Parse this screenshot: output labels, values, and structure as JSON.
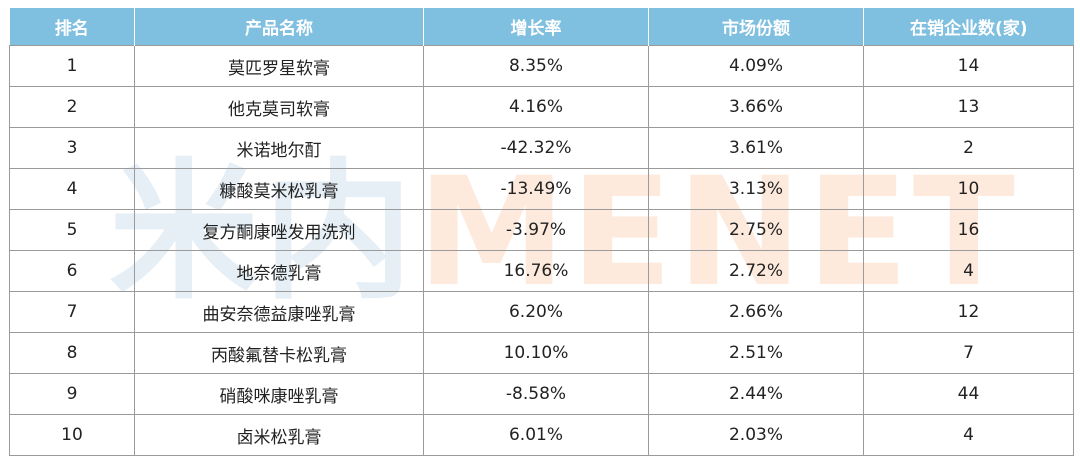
{
  "watermark": {
    "part1": "米内",
    "part2": "MENET"
  },
  "table": {
    "headers": [
      "排名",
      "产品名称",
      "增长率",
      "市场份额",
      "在销企业数(家)"
    ],
    "rows": [
      {
        "rank": "1",
        "name": "莫匹罗星软膏",
        "growth": "8.35%",
        "share": "4.09%",
        "companies": "14"
      },
      {
        "rank": "2",
        "name": "他克莫司软膏",
        "growth": "4.16%",
        "share": "3.66%",
        "companies": "13"
      },
      {
        "rank": "3",
        "name": "米诺地尔酊",
        "growth": "-42.32%",
        "share": "3.61%",
        "companies": "2"
      },
      {
        "rank": "4",
        "name": "糠酸莫米松乳膏",
        "growth": "-13.49%",
        "share": "3.13%",
        "companies": "10"
      },
      {
        "rank": "5",
        "name": "复方酮康唑发用洗剂",
        "growth": "-3.97%",
        "share": "2.75%",
        "companies": "16"
      },
      {
        "rank": "6",
        "name": "地奈德乳膏",
        "growth": "16.76%",
        "share": "2.72%",
        "companies": "4"
      },
      {
        "rank": "7",
        "name": "曲安奈德益康唑乳膏",
        "growth": "6.20%",
        "share": "2.66%",
        "companies": "12"
      },
      {
        "rank": "8",
        "name": "丙酸氟替卡松乳膏",
        "growth": "10.10%",
        "share": "2.51%",
        "companies": "7"
      },
      {
        "rank": "9",
        "name": "硝酸咪康唑乳膏",
        "growth": "-8.58%",
        "share": "2.44%",
        "companies": "44"
      },
      {
        "rank": "10",
        "name": "卤米松乳膏",
        "growth": "6.01%",
        "share": "2.03%",
        "companies": "4"
      }
    ]
  },
  "colors": {
    "header_bg": "#7fbfdf",
    "header_text": "#ffffff",
    "border": "#9a9a9a"
  }
}
